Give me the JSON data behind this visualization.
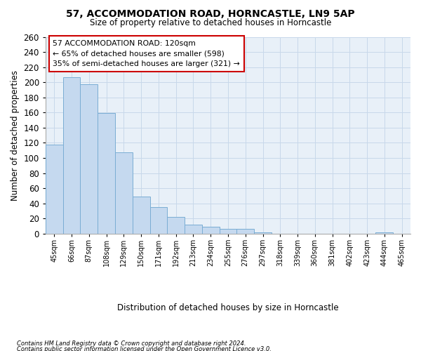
{
  "title1": "57, ACCOMMODATION ROAD, HORNCASTLE, LN9 5AP",
  "title2": "Size of property relative to detached houses in Horncastle",
  "xlabel": "Distribution of detached houses by size in Horncastle",
  "ylabel": "Number of detached properties",
  "categories": [
    "45sqm",
    "66sqm",
    "87sqm",
    "108sqm",
    "129sqm",
    "150sqm",
    "171sqm",
    "192sqm",
    "213sqm",
    "234sqm",
    "255sqm",
    "276sqm",
    "297sqm",
    "318sqm",
    "339sqm",
    "360sqm",
    "381sqm",
    "402sqm",
    "423sqm",
    "444sqm",
    "465sqm"
  ],
  "values": [
    118,
    207,
    197,
    159,
    107,
    49,
    35,
    22,
    12,
    9,
    6,
    6,
    2,
    0,
    0,
    0,
    0,
    0,
    0,
    2,
    0
  ],
  "bar_color": "#c5d9ef",
  "bar_edge_color": "#7aadd4",
  "annotation_line1": "57 ACCOMMODATION ROAD: 120sqm",
  "annotation_line2": "← 65% of detached houses are smaller (598)",
  "annotation_line3": "35% of semi-detached houses are larger (321) →",
  "annotation_box_edge_color": "#cc0000",
  "ylim": [
    0,
    260
  ],
  "yticks": [
    0,
    20,
    40,
    60,
    80,
    100,
    120,
    140,
    160,
    180,
    200,
    220,
    240,
    260
  ],
  "grid_color": "#c8d8ea",
  "bg_color": "#e8f0f8",
  "footer1": "Contains HM Land Registry data © Crown copyright and database right 2024.",
  "footer2": "Contains public sector information licensed under the Open Government Licence v3.0.",
  "property_bin": 3
}
